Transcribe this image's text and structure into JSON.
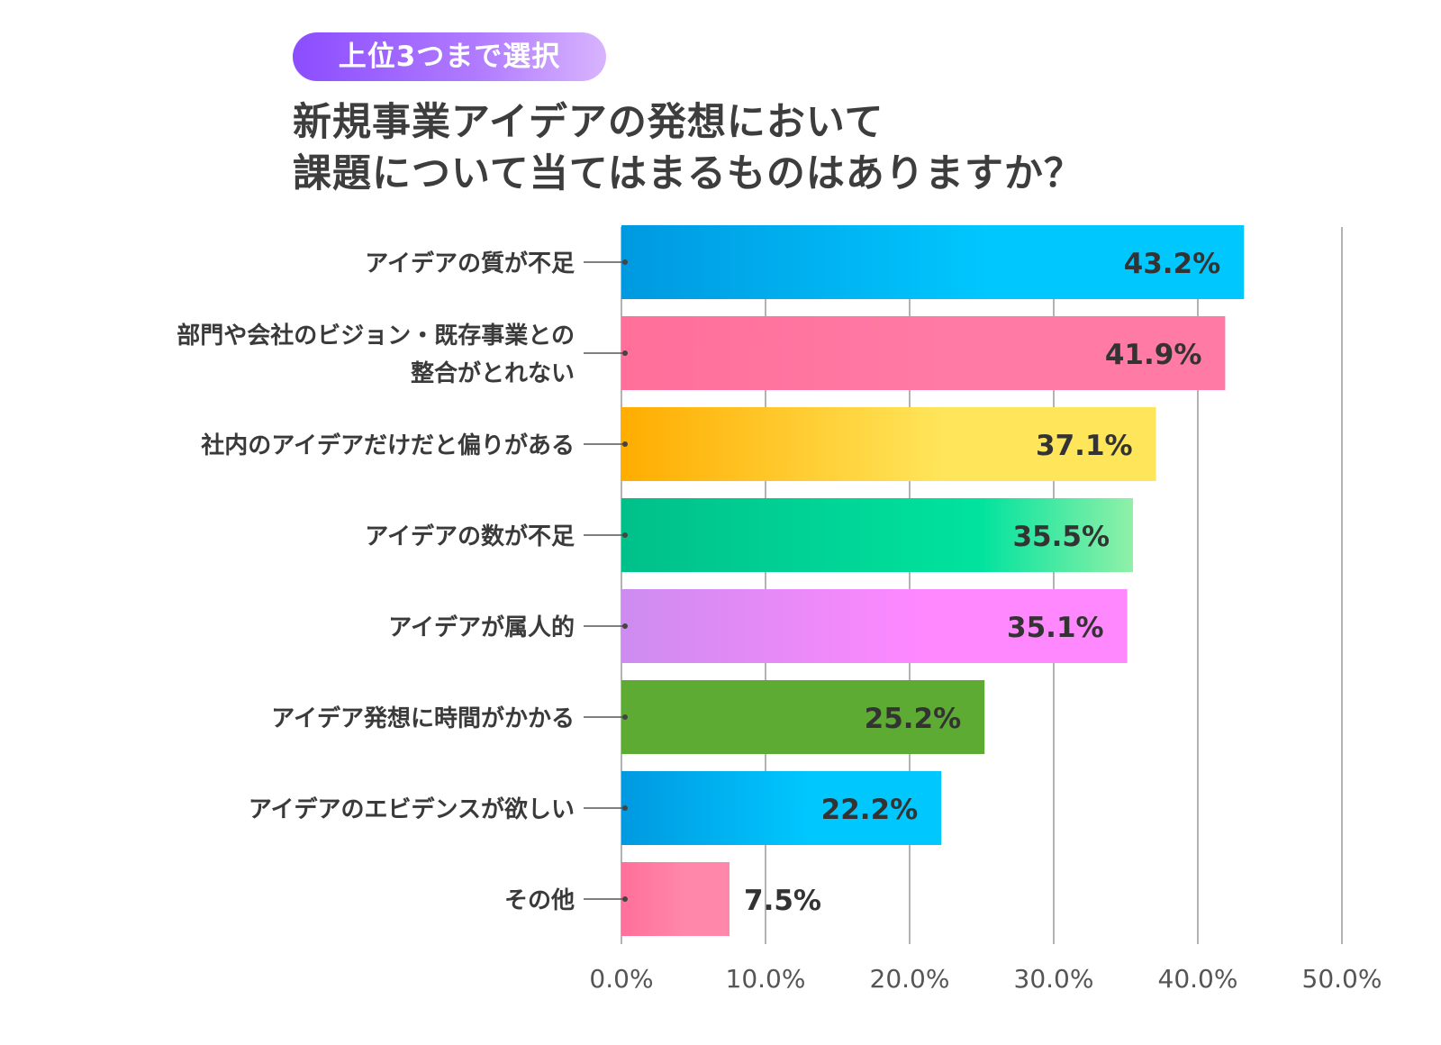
{
  "badge": "上位3つまで選択",
  "title_lines": [
    "新規事業アイデアの発想において",
    "課題について当てはまるものはありますか？"
  ],
  "colors": {
    "bar_gradients": [
      [
        "#0099e0",
        "#00c8ff"
      ],
      [
        "#ff6f9a",
        "#ff7ba6"
      ],
      [
        "#ffad00",
        "#ffe55a"
      ],
      [
        "#00c08a",
        "#90f0a8"
      ],
      [
        "#cd8cf0",
        "#ff88ff"
      ],
      [
        "#5dab33",
        "#5dab33"
      ],
      [
        "#0099e0",
        "#00c8ff"
      ],
      [
        "#ff6f9a",
        "#ff88aa"
      ]
    ],
    "grid": "#9a9a9a",
    "label_text": "#3a3a3a"
  },
  "chart_data": {
    "type": "bar",
    "orientation": "horizontal",
    "categories": [
      [
        "アイデアの質が不足"
      ],
      [
        "部門や会社のビジョン・既存事業との",
        "整合がとれない"
      ],
      [
        "社内のアイデアだけだと偏りがある"
      ],
      [
        "アイデアの数が不足"
      ],
      [
        "アイデアが属人的"
      ],
      [
        "アイデア発想に時間がかかる"
      ],
      [
        "アイデアのエビデンスが欲しい"
      ],
      [
        "その他"
      ]
    ],
    "values": [
      43.2,
      41.9,
      37.1,
      35.5,
      35.1,
      25.2,
      22.2,
      7.5
    ],
    "value_labels": [
      "43.2%",
      "41.9%",
      "37.1%",
      "35.5%",
      "35.1%",
      "25.2%",
      "22.2%",
      "7.5%"
    ],
    "xlim": [
      0,
      50
    ],
    "xticks": [
      0,
      10,
      20,
      30,
      40,
      50
    ],
    "xtick_labels": [
      "0.0%",
      "10.0%",
      "20.0%",
      "30.0%",
      "40.0%",
      "50.0%"
    ],
    "grid": true
  }
}
